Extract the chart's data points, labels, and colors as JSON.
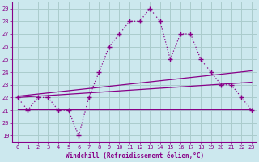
{
  "xlabel": "Windchill (Refroidissement éolien,°C)",
  "bg_color": "#cce8ee",
  "grid_color": "#aacccc",
  "line_color": "#880088",
  "xlim": [
    -0.5,
    23.5
  ],
  "ylim": [
    18.5,
    29.5
  ],
  "yticks": [
    19,
    20,
    21,
    22,
    23,
    24,
    25,
    26,
    27,
    28,
    29
  ],
  "xticks": [
    0,
    1,
    2,
    3,
    4,
    5,
    6,
    7,
    8,
    9,
    10,
    11,
    12,
    13,
    14,
    15,
    16,
    17,
    18,
    19,
    20,
    21,
    22,
    23
  ],
  "main_x": [
    0,
    1,
    2,
    3,
    4,
    5,
    6,
    7,
    8,
    9,
    10,
    11,
    12,
    13,
    14,
    15,
    16,
    17,
    18,
    19,
    20,
    21,
    22,
    23
  ],
  "main_y": [
    22,
    21,
    22,
    22,
    21,
    21,
    19,
    22,
    24,
    26,
    27,
    28,
    28,
    29,
    28,
    25,
    27,
    27,
    25,
    24,
    23,
    23,
    22,
    21
  ],
  "line1_x": [
    0,
    23
  ],
  "line1_y": [
    22.0,
    23.2
  ],
  "line2_x": [
    0,
    23
  ],
  "line2_y": [
    22.1,
    24.1
  ],
  "hline_x": [
    0,
    23
  ],
  "hline_y": [
    21.1,
    21.1
  ]
}
